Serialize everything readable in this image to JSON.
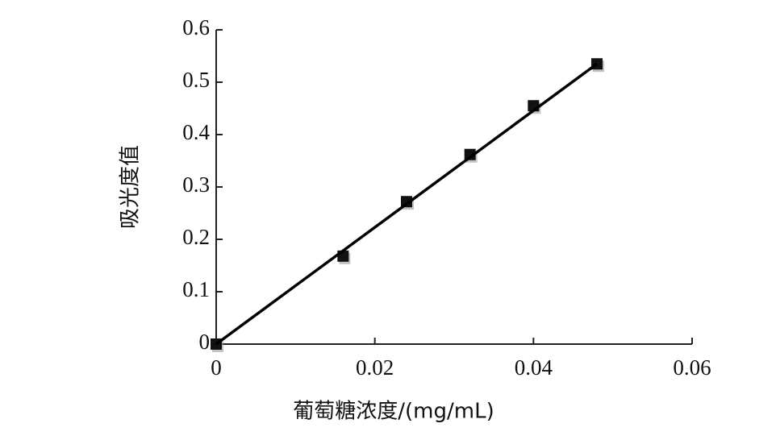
{
  "chart_data": {
    "type": "scatter",
    "xlabel": "葡萄糖浓度/(mg/mL)",
    "ylabel": "吸光度值",
    "x": [
      0,
      0.016,
      0.024,
      0.032,
      0.04,
      0.048
    ],
    "values": [
      0,
      0.168,
      0.272,
      0.362,
      0.455,
      0.535
    ],
    "color": "#111111",
    "fit_line": {
      "x": [
        0,
        0.048
      ],
      "values": [
        0,
        0.535
      ],
      "color": "#000000"
    },
    "xlim": [
      0,
      0.06
    ],
    "xticks": [
      0,
      0.02,
      0.04,
      0.06
    ],
    "ylim": [
      0,
      0.6
    ],
    "yticks": [
      0,
      0.1,
      0.2,
      0.3,
      0.4,
      0.5,
      0.6
    ],
    "grid": false
  }
}
